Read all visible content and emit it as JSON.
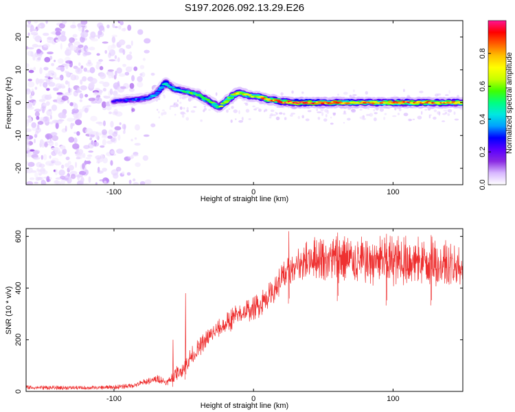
{
  "title": "S197.2026.092.13.29.E26",
  "colors": {
    "snr_line": "#ee3030",
    "cmap": [
      "#ffffff",
      "#d8b8ff",
      "#8a2be2",
      "#5a00ff",
      "#0000ff",
      "#00a0ff",
      "#00e8e0",
      "#00ff80",
      "#40ff00",
      "#c8ff00",
      "#ffff00",
      "#ffc000",
      "#ff6000",
      "#ff0000",
      "#ff1493"
    ]
  },
  "chart_data": [
    {
      "type": "heatmap",
      "name": "spectrogram",
      "title": "S197.2026.092.13.29.E26",
      "xlabel": "Height of straight line (km)",
      "ylabel": "Frequency (Hz)",
      "xlim": [
        -163,
        150
      ],
      "ylim": [
        -25,
        25
      ],
      "xticks": [
        -100,
        0,
        100
      ],
      "xtick_labels": [
        "-100",
        "0",
        "100"
      ],
      "yticks": [
        -20,
        -10,
        0,
        10,
        20
      ],
      "ytick_labels": [
        "-20",
        "-10",
        "0",
        "10",
        "20"
      ],
      "colorbar": {
        "label": "Normalized spectral amplitude",
        "range": [
          0,
          1
        ],
        "ticks": [
          0,
          0.2,
          0.4,
          0.6,
          0.8
        ],
        "tick_labels": [
          "0.0",
          "0.2",
          "0.4",
          "0.6",
          "0.8"
        ]
      },
      "noise_region_x": [
        -163,
        -68
      ],
      "ridge": {
        "x": [
          -100,
          -92,
          -85,
          -80,
          -75,
          -70,
          -66,
          -63,
          -60,
          -55,
          -50,
          -45,
          -40,
          -36,
          -32,
          -28,
          -25,
          -22,
          -18,
          -14,
          -10,
          -6,
          -2,
          2,
          6,
          10,
          15,
          20,
          30,
          50,
          70,
          90,
          110,
          130,
          150
        ],
        "freq": [
          0.5,
          0.7,
          1,
          1.2,
          1.5,
          2.5,
          4.5,
          6,
          5,
          4,
          3.5,
          3,
          2.5,
          1.5,
          0.5,
          -0.5,
          -1.5,
          -0.5,
          1,
          2.5,
          3,
          2.5,
          2,
          2,
          1.5,
          1,
          0.8,
          0.3,
          0,
          0,
          0,
          0,
          0,
          0,
          0
        ],
        "amp": [
          0.25,
          0.3,
          0.35,
          0.4,
          0.35,
          0.4,
          0.45,
          0.5,
          0.45,
          0.5,
          0.5,
          0.55,
          0.55,
          0.6,
          0.55,
          0.6,
          0.6,
          0.65,
          0.7,
          0.75,
          0.8,
          0.75,
          0.7,
          0.75,
          0.8,
          0.85,
          0.85,
          0.9,
          0.95,
          0.9,
          0.85,
          0.8,
          0.9,
          0.85,
          0.8
        ]
      }
    },
    {
      "type": "line",
      "name": "snr",
      "xlabel": "Height of straight line (km)",
      "ylabel": "SNR (10 * v/v)",
      "xlim": [
        -163,
        150
      ],
      "ylim": [
        0,
        630
      ],
      "xticks": [
        -100,
        0,
        100
      ],
      "xtick_labels": [
        "-100",
        "0",
        "100"
      ],
      "yticks": [
        0,
        200,
        400,
        600
      ],
      "ytick_labels": [
        "0",
        "200",
        "400",
        "600"
      ],
      "envelope": {
        "x": [
          -163,
          -140,
          -120,
          -100,
          -85,
          -75,
          -68,
          -62,
          -55,
          -50,
          -45,
          -40,
          -35,
          -30,
          -25,
          -20,
          -15,
          -10,
          -5,
          0,
          5,
          10,
          15,
          20,
          30,
          40,
          60,
          80,
          100,
          120,
          140,
          150
        ],
        "upper": [
          25,
          22,
          22,
          25,
          35,
          55,
          65,
          45,
          100,
          120,
          170,
          200,
          230,
          260,
          280,
          300,
          330,
          350,
          360,
          370,
          390,
          420,
          450,
          500,
          560,
          600,
          610,
          600,
          610,
          600,
          600,
          580
        ],
        "lower": [
          0,
          0,
          0,
          0,
          5,
          15,
          20,
          15,
          20,
          40,
          70,
          100,
          130,
          150,
          180,
          190,
          200,
          220,
          230,
          240,
          250,
          280,
          300,
          330,
          350,
          380,
          350,
          340,
          330,
          340,
          320,
          320
        ]
      },
      "spikes": [
        {
          "x": -49,
          "y": 380
        },
        {
          "x": -58,
          "y": 200
        },
        {
          "x": 25,
          "y": 620
        },
        {
          "x": 60,
          "y": 615
        },
        {
          "x": 95,
          "y": 610
        },
        {
          "x": 127,
          "y": 605
        }
      ]
    }
  ]
}
